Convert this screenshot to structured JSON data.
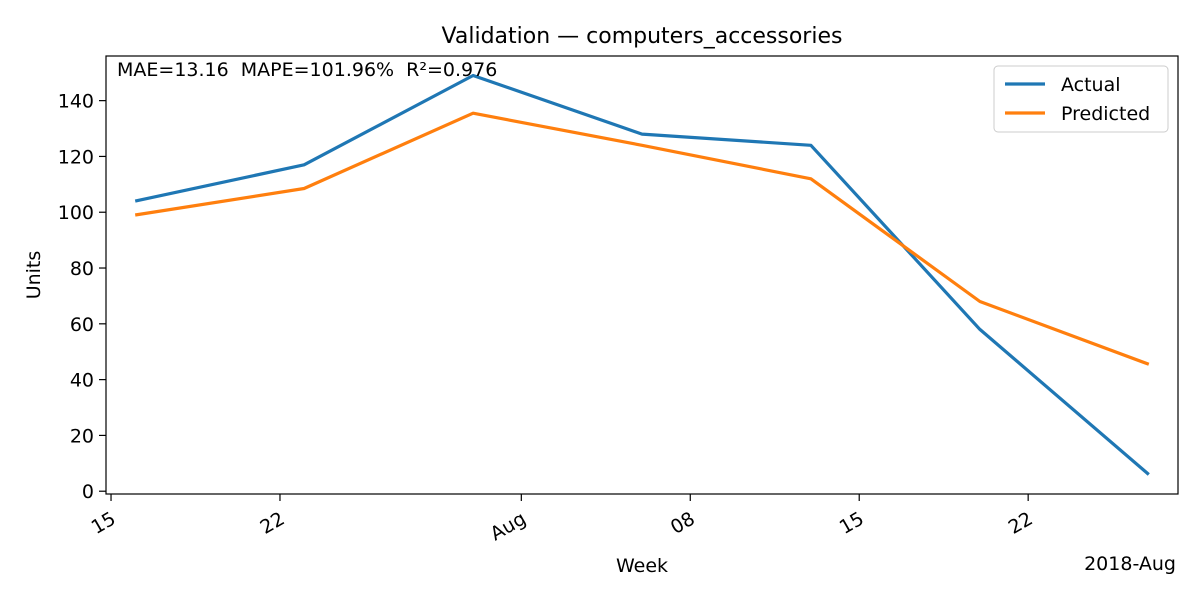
{
  "chart_data": {
    "type": "line",
    "title": "Validation — computers_accessories",
    "xlabel": "Week",
    "ylabel": "Units",
    "x": [
      "2018-07-16",
      "2018-07-23",
      "2018-07-30",
      "2018-08-06",
      "2018-08-13",
      "2018-08-20",
      "2018-08-27"
    ],
    "xlim": [
      "2018-07-14T19:00",
      "2018-08-28T05:00"
    ],
    "ylim": [
      -1,
      156
    ],
    "x_ticks": [
      {
        "date": "2018-07-15",
        "label": "15"
      },
      {
        "date": "2018-07-22",
        "label": "22"
      },
      {
        "date": "2018-08-01",
        "label": "Aug"
      },
      {
        "date": "2018-08-08",
        "label": "08"
      },
      {
        "date": "2018-08-15",
        "label": "15"
      },
      {
        "date": "2018-08-22",
        "label": "22"
      }
    ],
    "x_offset_label": "2018-Aug",
    "y_ticks": [
      0,
      20,
      40,
      60,
      80,
      100,
      120,
      140
    ],
    "series": [
      {
        "name": "Actual",
        "color": "#1f77b4",
        "values": [
          104,
          117,
          149,
          128,
          124,
          58,
          6
        ]
      },
      {
        "name": "Predicted",
        "color": "#ff7f0e",
        "values": [
          99,
          108.5,
          135.5,
          124,
          112,
          68,
          45.5
        ]
      }
    ],
    "annotation": "MAE=13.16  MAPE=101.96%  R²=0.976",
    "legend": "top-right",
    "grid": false
  }
}
